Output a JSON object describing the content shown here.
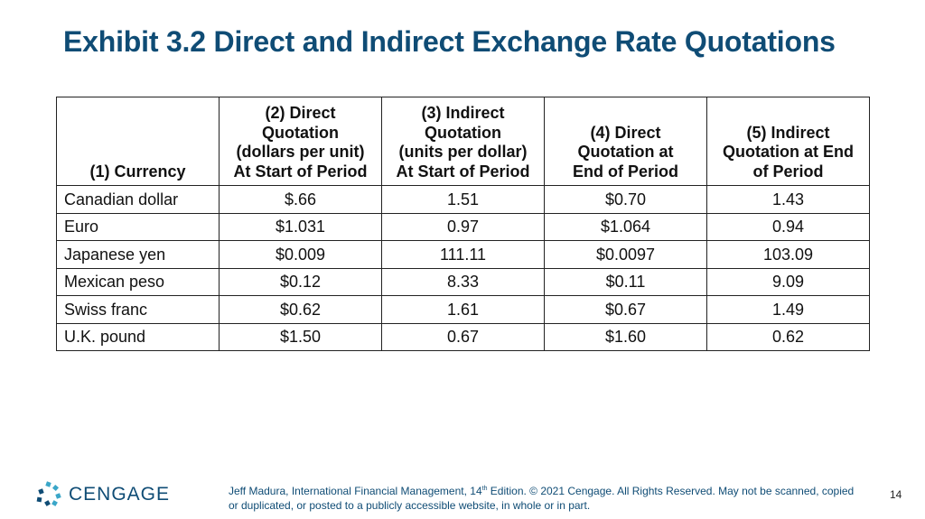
{
  "slide": {
    "title": "Exhibit 3.2 Direct and Indirect Exchange Rate Quotations",
    "page_number": "14"
  },
  "table": {
    "headers": [
      [
        "(1) Currency"
      ],
      [
        "(2) Direct",
        "Quotation",
        "(dollars per unit)",
        "At Start of Period"
      ],
      [
        "(3) Indirect",
        "Quotation",
        "(units per dollar)",
        "At Start of Period"
      ],
      [
        "(4) Direct",
        "Quotation at",
        "End of Period"
      ],
      [
        "(5) Indirect",
        "Quotation at End",
        "of Period"
      ]
    ],
    "rows": [
      [
        "Canadian dollar",
        "$.66",
        "1.51",
        "$0.70",
        "1.43"
      ],
      [
        "Euro",
        "$1.031",
        "0.97",
        "$1.064",
        "0.94"
      ],
      [
        "Japanese yen",
        "$0.009",
        "111.11",
        "$0.0097",
        "103.09"
      ],
      [
        "Mexican peso",
        "$0.12",
        "8.33",
        "$0.11",
        "9.09"
      ],
      [
        "Swiss franc",
        "$0.62",
        "1.61",
        "$0.67",
        "1.49"
      ],
      [
        "U.K. pound",
        "$1.50",
        "0.67",
        "$1.60",
        "0.62"
      ]
    ]
  },
  "footer": {
    "logo_text": "CENGAGE",
    "citation_part1": "Jeff Madura, International Financial Management, 14",
    "citation_sup": "th",
    "citation_part2": " Edition. © 2021 Cengage. All Rights Reserved. May not be scanned, copied or duplicated, or posted to a publicly accessible website, in whole or in part."
  },
  "colors": {
    "title": "#0f4c75",
    "logo_teal": "#3aa6c8",
    "logo_navy": "#0f4c75"
  }
}
